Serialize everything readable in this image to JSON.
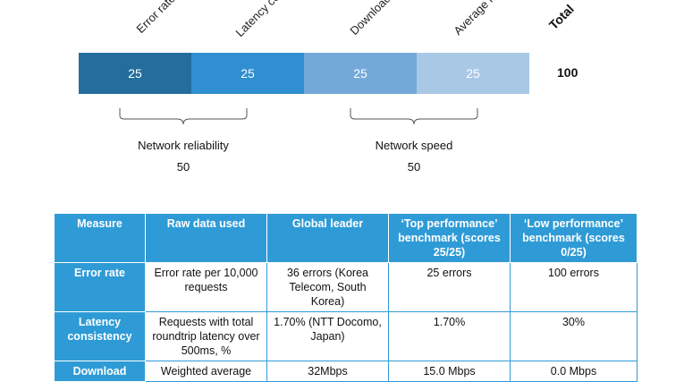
{
  "chart_data": {
    "type": "bar",
    "stacked": true,
    "orientation": "horizontal",
    "categories": [
      "Error rate",
      "Latency consistency",
      "Download speed",
      "Average latency"
    ],
    "category_labels_visible": [
      "Error rate",
      "Latency co",
      "Download s",
      "Average la"
    ],
    "values": [
      25,
      25,
      25,
      25
    ],
    "colors": [
      "#236e9d",
      "#2f8fd0",
      "#73a9d8",
      "#a9c8e6"
    ],
    "total_label": "Total",
    "total_value": "100",
    "groups": [
      {
        "label": "Network reliability",
        "value": "50",
        "members": [
          "Error rate",
          "Latency consistency"
        ]
      },
      {
        "label": "Network speed",
        "value": "50",
        "members": [
          "Download speed",
          "Average latency"
        ]
      }
    ]
  },
  "table": {
    "headers": [
      "Measure",
      "Raw data used",
      "Global leader",
      "‘Top performance’ benchmark (scores 25/25)",
      "‘Low performance’ benchmark (scores 0/25)"
    ],
    "rows": [
      [
        "Error rate",
        "Error rate per 10,000 requests",
        "36 errors (Korea Telecom, South Korea)",
        "25 errors",
        "100 errors"
      ],
      [
        "Latency consistency",
        "Requests with total roundtrip latency over 500ms, %",
        "1.70% (NTT Docomo, Japan)",
        "1.70%",
        "30%"
      ],
      [
        "Download",
        "Weighted average",
        "32Mbps",
        "15.0 Mbps",
        "0.0 Mbps"
      ]
    ]
  }
}
